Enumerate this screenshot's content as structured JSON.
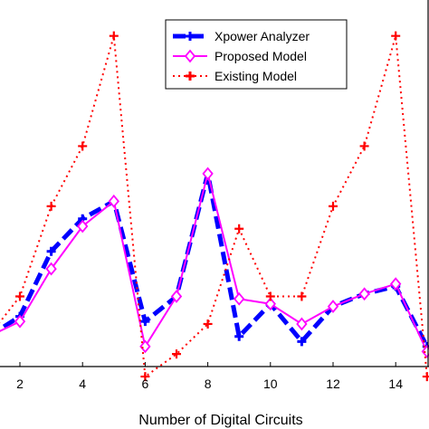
{
  "chart_data": {
    "type": "line",
    "title": "",
    "xlabel": "Number of Digital Circuits",
    "ylabel": "",
    "xlim": [
      1,
      15
    ],
    "ylim": [
      0,
      7
    ],
    "xticks": [
      2,
      4,
      6,
      8,
      10,
      12,
      14
    ],
    "grid": false,
    "legend_position": "top-right",
    "series": [
      {
        "name": "Xpower Analyzer",
        "color": "#0000ff",
        "style": "dashed",
        "marker": "plus",
        "x": [
          1,
          2,
          3,
          4,
          5,
          6,
          7,
          8,
          9,
          10,
          11,
          12,
          13,
          14,
          15
        ],
        "y": [
          0.6,
          1.0,
          2.3,
          2.95,
          3.3,
          0.9,
          1.4,
          3.85,
          0.6,
          1.25,
          0.5,
          1.2,
          1.45,
          1.6,
          0.4
        ]
      },
      {
        "name": "Proposed Model",
        "color": "#ff00ff",
        "style": "solid",
        "marker": "diamond",
        "x": [
          1,
          2,
          3,
          4,
          5,
          6,
          7,
          8,
          9,
          10,
          11,
          12,
          13,
          14,
          15
        ],
        "y": [
          0.6,
          0.9,
          1.95,
          2.8,
          3.3,
          0.4,
          1.4,
          3.85,
          1.35,
          1.25,
          0.85,
          1.2,
          1.45,
          1.65,
          0.3
        ]
      },
      {
        "name": "Existing Model",
        "color": "#ff0000",
        "style": "dotted",
        "marker": "plus",
        "x": [
          1,
          2,
          3,
          4,
          5,
          6,
          7,
          8,
          9,
          10,
          11,
          12,
          13,
          14,
          15
        ],
        "y": [
          0.6,
          1.4,
          3.2,
          4.4,
          6.6,
          -0.2,
          0.25,
          0.85,
          2.75,
          1.4,
          1.4,
          3.2,
          4.4,
          6.6,
          -0.2
        ]
      }
    ]
  }
}
